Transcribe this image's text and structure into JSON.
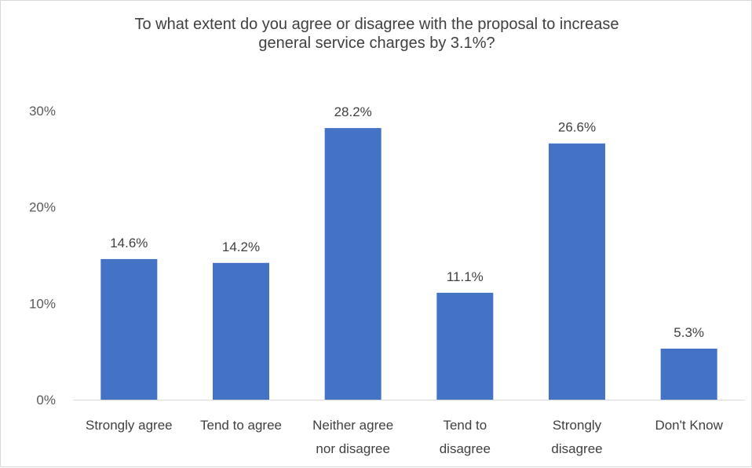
{
  "chart_data": {
    "type": "bar",
    "title": [
      "To what extent do you agree or disagree with the proposal to increase",
      "general service charges by 3.1%?"
    ],
    "categories": [
      [
        "Strongly agree"
      ],
      [
        "Tend to agree"
      ],
      [
        "Neither agree",
        "nor disagree"
      ],
      [
        "Tend to",
        "disagree"
      ],
      [
        "Strongly",
        "disagree"
      ],
      [
        "Don't Know"
      ]
    ],
    "values": [
      14.6,
      14.2,
      28.2,
      11.1,
      26.6,
      5.3
    ],
    "data_labels": [
      "14.6%",
      "14.2%",
      "28.2%",
      "11.1%",
      "26.6%",
      "5.3%"
    ],
    "ylim": [
      0,
      30
    ],
    "yticks": [
      0,
      10,
      20,
      30
    ],
    "ytick_labels": [
      "0%",
      "10%",
      "20%",
      "30%"
    ],
    "bar_color": "#4472C4",
    "grid": false,
    "legend": "none"
  }
}
